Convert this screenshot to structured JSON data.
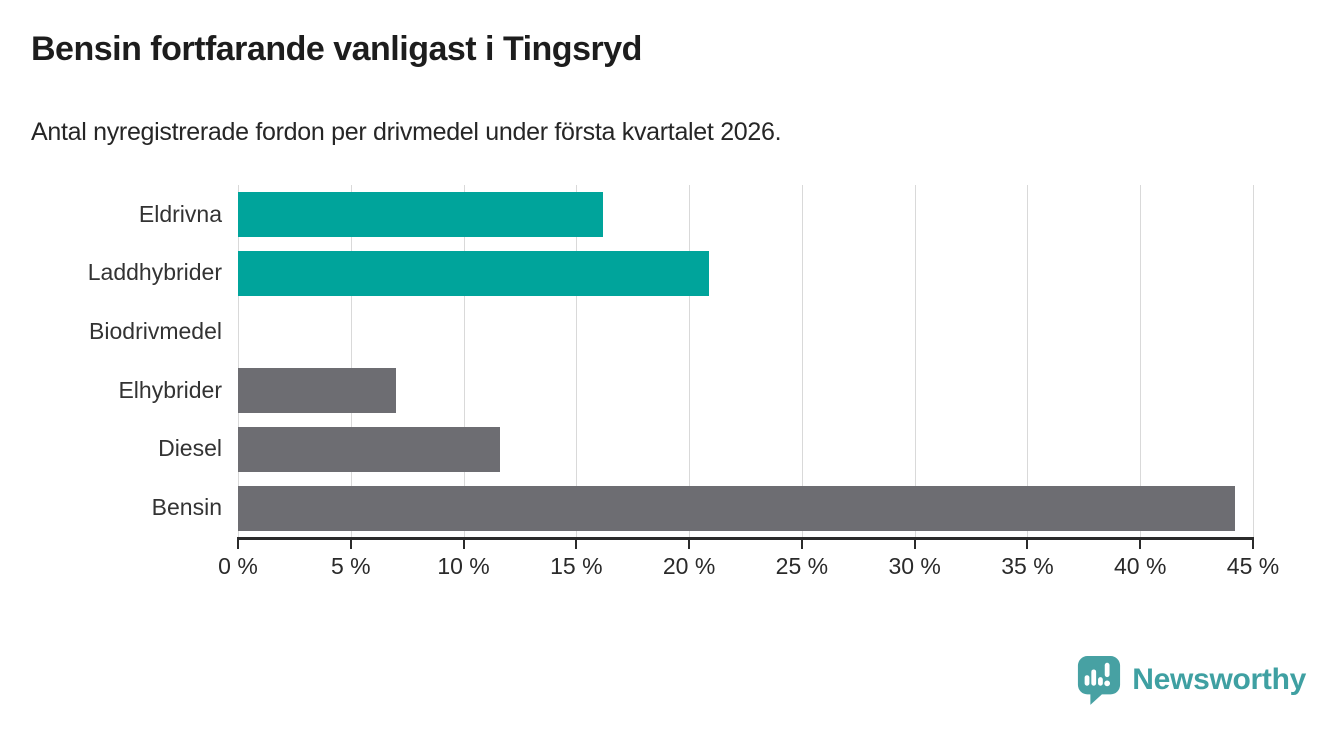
{
  "header": {
    "title": "Bensin fortfarande vanligast i Tingsryd",
    "subtitle": "Antal nyregistrerade fordon per drivmedel under första kvartalet 2026."
  },
  "chart_data": {
    "type": "bar",
    "orientation": "horizontal",
    "title": "Bensin fortfarande vanligast i Tingsryd",
    "subtitle": "Antal nyregistrerade fordon per drivmedel under första kvartalet 2026.",
    "categories": [
      "Eldrivna",
      "Laddhybrider",
      "Biodrivmedel",
      "Elhybrider",
      "Diesel",
      "Bensin"
    ],
    "values": [
      16.2,
      20.9,
      0,
      7,
      11.6,
      44.2
    ],
    "unit": "%",
    "bar_colors": [
      "#00a49b",
      "#00a49b",
      "#6d6d72",
      "#6d6d72",
      "#6d6d72",
      "#6d6d72"
    ],
    "xlim": [
      0,
      45
    ],
    "x_ticks": [
      0,
      5,
      10,
      15,
      20,
      25,
      30,
      35,
      40,
      45
    ],
    "x_tick_labels": [
      "0 %",
      "5 %",
      "10 %",
      "15 %",
      "20 %",
      "25 %",
      "30 %",
      "35 %",
      "40 %",
      "45 %"
    ],
    "grid": "vertical",
    "legend": false
  },
  "colors": {
    "teal": "#00a49b",
    "gray": "#6d6d72",
    "gridline": "#d9d9d9",
    "axis": "#2b2b2b",
    "brand": "#3fa0a2"
  },
  "footer": {
    "brand": "Newsworthy"
  }
}
